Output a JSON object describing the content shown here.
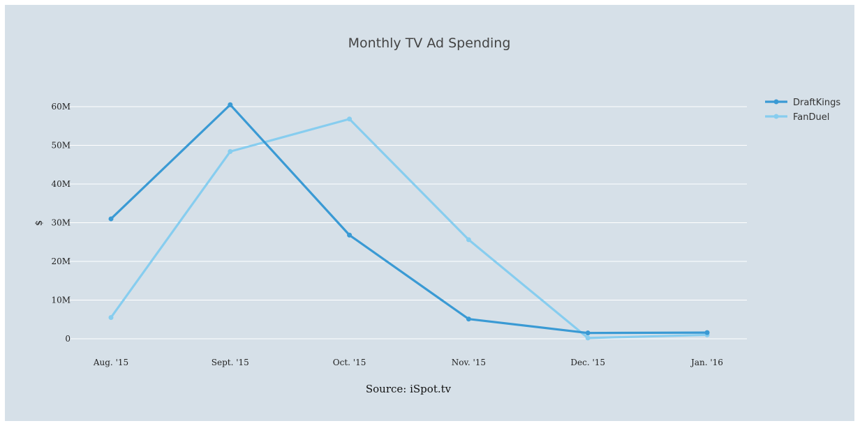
{
  "chart_data": {
    "type": "line",
    "title": "Monthly TV Ad Spending",
    "xlabel": "Source:  iSpot.tv",
    "ylabel": "$",
    "categories": [
      "Aug. '15",
      "Sept. '15",
      "Oct. '15",
      "Nov. '15",
      "Dec. '15",
      "Jan. '16"
    ],
    "ylim": [
      0,
      60000000
    ],
    "yticks": [
      0,
      10000000,
      20000000,
      30000000,
      40000000,
      50000000,
      60000000
    ],
    "ytick_labels": [
      "0",
      "10M",
      "20M",
      "30M",
      "40M",
      "50M",
      "60M"
    ],
    "grid": true,
    "legend_position": "top-right",
    "series": [
      {
        "name": "DraftKings",
        "color": "#3a9ad4",
        "values": [
          31000000,
          60500000,
          26800000,
          5100000,
          1500000,
          1600000
        ]
      },
      {
        "name": "FanDuel",
        "color": "#87cdef",
        "values": [
          5500000,
          48400000,
          56800000,
          25600000,
          200000,
          1000000
        ]
      }
    ]
  },
  "colors": {
    "background": "#d6e0e8",
    "gridline": "#ffffff"
  }
}
